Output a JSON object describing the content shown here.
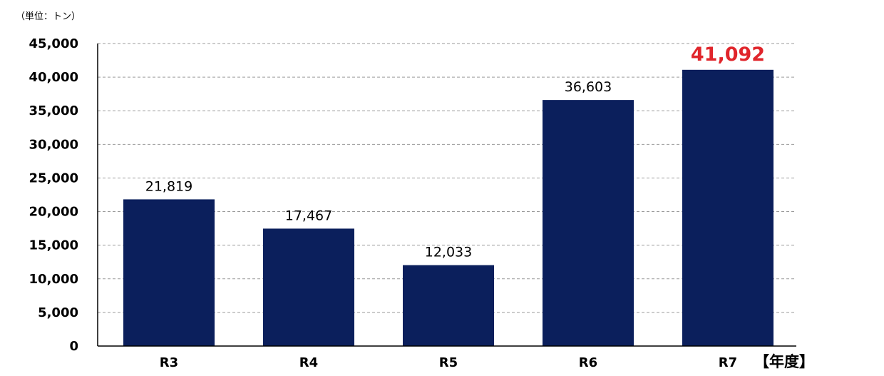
{
  "chart_data": {
    "type": "bar",
    "unit_label": "（単位：トン）",
    "x_unit_label": "【年度】",
    "categories": [
      "R3",
      "R4",
      "R5",
      "R6",
      "R7"
    ],
    "values": [
      21819,
      17467,
      12033,
      36603,
      41092
    ],
    "value_labels": [
      "21,819",
      "17,467",
      "12,033",
      "36,603",
      "41,092"
    ],
    "highlight_index": 4,
    "ylim": [
      0,
      45000
    ],
    "y_ticks": [
      "0",
      "5,000",
      "10,000",
      "15,000",
      "20,000",
      "25,000",
      "30,000",
      "35,000",
      "40,000",
      "45,000"
    ],
    "grid": true,
    "colors": {
      "bar": "#0b1f5c",
      "highlight_label": "#e0252b",
      "grid": "#9a9a9a"
    }
  }
}
